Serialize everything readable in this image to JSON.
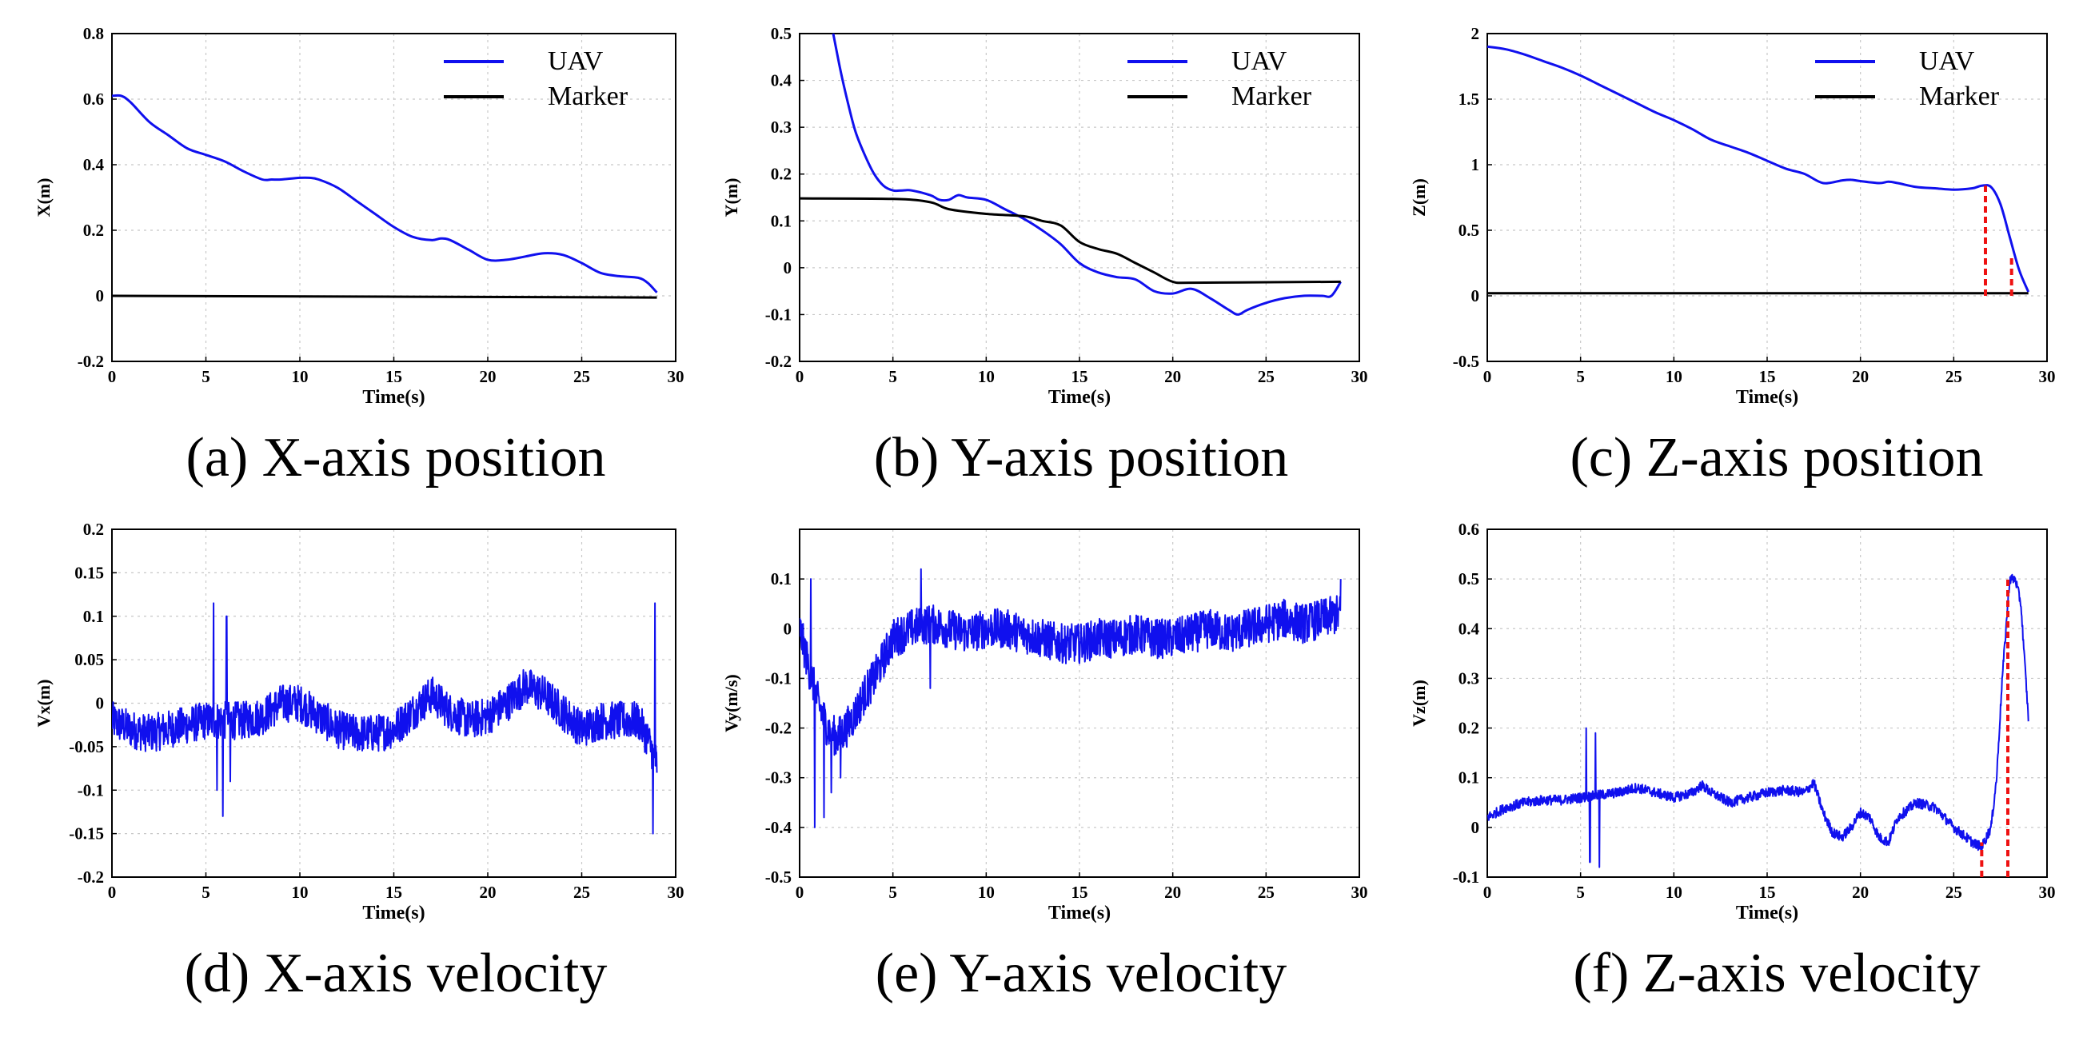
{
  "colors": {
    "uav": "#1010ee",
    "marker": "#000000",
    "annotation": "#ee1111"
  },
  "chart_data": [
    {
      "id": "a",
      "type": "line",
      "caption": "(a) X-axis position",
      "xlabel": "Time(s)",
      "ylabel": "X(m)",
      "xlim": [
        0,
        30
      ],
      "ylim": [
        -0.2,
        0.8
      ],
      "xticks": [
        0,
        5,
        10,
        15,
        20,
        25,
        30
      ],
      "yticks": [
        -0.2,
        0,
        0.2,
        0.4,
        0.6,
        0.8
      ],
      "legend": [
        "UAV",
        "Marker"
      ],
      "legend_position": "top-right",
      "series": [
        {
          "name": "UAV",
          "color": "#1010ee",
          "x": [
            0,
            0.5,
            1,
            2,
            3,
            4,
            5,
            6,
            7,
            8,
            8.5,
            9,
            10,
            10.5,
            11,
            12,
            13,
            14,
            15,
            16,
            17,
            17.5,
            18,
            19,
            20,
            21,
            22,
            23,
            24,
            25,
            26,
            27,
            28,
            28.5,
            29
          ],
          "y": [
            0.61,
            0.61,
            0.59,
            0.53,
            0.49,
            0.45,
            0.43,
            0.41,
            0.38,
            0.355,
            0.355,
            0.355,
            0.36,
            0.36,
            0.355,
            0.33,
            0.29,
            0.25,
            0.21,
            0.18,
            0.17,
            0.175,
            0.17,
            0.14,
            0.11,
            0.11,
            0.12,
            0.13,
            0.125,
            0.1,
            0.07,
            0.06,
            0.055,
            0.04,
            0.01
          ]
        },
        {
          "name": "Marker",
          "color": "#000000",
          "x": [
            0,
            29
          ],
          "y": [
            0.0,
            -0.005
          ]
        }
      ]
    },
    {
      "id": "b",
      "type": "line",
      "caption": "(b) Y-axis position",
      "xlabel": "Time(s)",
      "ylabel": "Y(m)",
      "xlim": [
        0,
        30
      ],
      "ylim": [
        -0.2,
        0.5
      ],
      "xticks": [
        0,
        5,
        10,
        15,
        20,
        25,
        30
      ],
      "yticks": [
        -0.2,
        -0.1,
        0,
        0.1,
        0.2,
        0.3,
        0.4,
        0.5
      ],
      "legend": [
        "UAV",
        "Marker"
      ],
      "legend_position": "top-right",
      "series": [
        {
          "name": "UAV",
          "color": "#1010ee",
          "x": [
            1.8,
            2.2,
            2.6,
            3,
            3.5,
            4,
            4.5,
            5,
            5.5,
            6,
            7,
            7.5,
            8,
            8.5,
            9,
            10,
            11,
            12,
            13,
            14,
            15,
            16,
            17,
            18,
            19,
            20,
            21,
            22,
            23,
            23.5,
            24,
            25,
            26,
            27,
            28,
            28.5,
            29
          ],
          "y": [
            0.5,
            0.42,
            0.35,
            0.29,
            0.24,
            0.2,
            0.175,
            0.165,
            0.165,
            0.165,
            0.155,
            0.145,
            0.145,
            0.155,
            0.15,
            0.145,
            0.125,
            0.105,
            0.08,
            0.05,
            0.01,
            -0.01,
            -0.02,
            -0.025,
            -0.05,
            -0.055,
            -0.045,
            -0.065,
            -0.09,
            -0.1,
            -0.09,
            -0.075,
            -0.065,
            -0.06,
            -0.06,
            -0.06,
            -0.03
          ]
        },
        {
          "name": "Marker",
          "color": "#000000",
          "x": [
            0,
            5,
            7,
            8,
            10,
            12,
            13,
            14,
            15,
            16,
            17,
            18,
            19,
            20,
            21,
            25,
            29
          ],
          "y": [
            0.148,
            0.147,
            0.14,
            0.125,
            0.115,
            0.11,
            0.1,
            0.09,
            0.055,
            0.04,
            0.03,
            0.01,
            -0.01,
            -0.03,
            -0.032,
            -0.031,
            -0.03
          ]
        }
      ]
    },
    {
      "id": "c",
      "type": "line",
      "caption": "(c) Z-axis position",
      "xlabel": "Time(s)",
      "ylabel": "Z(m)",
      "xlim": [
        0,
        30
      ],
      "ylim": [
        -0.5,
        2
      ],
      "xticks": [
        0,
        5,
        10,
        15,
        20,
        25,
        30
      ],
      "yticks": [
        -0.5,
        0,
        0.5,
        1,
        1.5,
        2
      ],
      "legend": [
        "UAV",
        "Marker"
      ],
      "legend_position": "top-right",
      "series": [
        {
          "name": "UAV",
          "color": "#1010ee",
          "x": [
            0,
            1,
            2,
            3,
            4,
            5,
            6,
            7,
            8,
            9,
            10,
            11,
            12,
            13,
            14,
            15,
            16,
            17,
            18,
            19,
            19.5,
            20,
            21,
            21.5,
            22,
            23,
            24,
            25,
            26,
            26.5,
            27,
            27.5,
            28,
            28.5,
            29
          ],
          "y": [
            1.9,
            1.88,
            1.84,
            1.79,
            1.74,
            1.68,
            1.61,
            1.54,
            1.47,
            1.4,
            1.34,
            1.27,
            1.19,
            1.14,
            1.09,
            1.03,
            0.97,
            0.93,
            0.86,
            0.88,
            0.885,
            0.875,
            0.86,
            0.87,
            0.86,
            0.83,
            0.82,
            0.81,
            0.82,
            0.84,
            0.83,
            0.7,
            0.45,
            0.2,
            0.03
          ]
        },
        {
          "name": "Marker",
          "color": "#000000",
          "x": [
            0,
            29
          ],
          "y": [
            0.02,
            0.02
          ]
        }
      ],
      "annotations": [
        {
          "type": "vline-dashed",
          "x": 26.7,
          "y_from": 0.0,
          "y_to": 0.84,
          "color": "#ee1111"
        },
        {
          "type": "vline-dashed",
          "x": 28.1,
          "y_from": 0.0,
          "y_to": 0.3,
          "color": "#ee1111"
        }
      ]
    },
    {
      "id": "d",
      "type": "line",
      "caption": "(d) X-axis velocity",
      "xlabel": "Time(s)",
      "ylabel": "Vx(m)",
      "xlim": [
        0,
        30
      ],
      "ylim": [
        -0.2,
        0.2
      ],
      "xticks": [
        0,
        5,
        10,
        15,
        20,
        25,
        30
      ],
      "yticks": [
        -0.2,
        -0.15,
        -0.1,
        -0.05,
        0,
        0.05,
        0.1,
        0.15,
        0.2
      ],
      "series": [
        {
          "name": "Vx",
          "color": "#1010ee",
          "noisy": true,
          "noise_amplitude": 0.022,
          "x": [
            0,
            1,
            2,
            3,
            4,
            5,
            6,
            7,
            8,
            9,
            10,
            11,
            12,
            13,
            14,
            15,
            16,
            17,
            18,
            19,
            20,
            21,
            22,
            23,
            24,
            25,
            26,
            27,
            28,
            28.5,
            29
          ],
          "y": [
            -0.02,
            -0.03,
            -0.035,
            -0.03,
            -0.025,
            -0.02,
            -0.02,
            -0.02,
            -0.015,
            0.0,
            0.0,
            -0.015,
            -0.03,
            -0.035,
            -0.035,
            -0.03,
            -0.01,
            0.01,
            -0.01,
            -0.02,
            -0.015,
            0.0,
            0.02,
            0.01,
            -0.01,
            -0.03,
            -0.02,
            -0.02,
            -0.02,
            -0.04,
            -0.07
          ],
          "spikes": [
            [
              5.4,
              0.115
            ],
            [
              5.6,
              -0.1
            ],
            [
              5.9,
              -0.13
            ],
            [
              6.1,
              0.1
            ],
            [
              6.3,
              -0.09
            ],
            [
              28.8,
              -0.15
            ],
            [
              28.9,
              0.115
            ],
            [
              29.0,
              -0.08
            ]
          ]
        }
      ]
    },
    {
      "id": "e",
      "type": "line",
      "caption": "(e) Y-axis velocity",
      "xlabel": "Time(s)",
      "ylabel": "Vy(m/s)",
      "xlim": [
        0,
        30
      ],
      "ylim": [
        -0.5,
        0.2
      ],
      "xticks": [
        0,
        5,
        10,
        15,
        20,
        25,
        30
      ],
      "yticks": [
        -0.5,
        -0.4,
        -0.3,
        -0.2,
        -0.1,
        0,
        0.1
      ],
      "series": [
        {
          "name": "Vy",
          "color": "#1010ee",
          "noisy": true,
          "noise_amplitude": 0.04,
          "x": [
            0,
            0.5,
            1,
            1.5,
            2,
            2.5,
            3,
            3.5,
            4,
            4.5,
            5,
            6,
            7,
            8,
            9,
            10,
            11,
            12,
            13,
            14,
            15,
            16,
            17,
            18,
            19,
            20,
            21,
            22,
            23,
            24,
            25,
            26,
            27,
            28,
            29
          ],
          "y": [
            0.0,
            -0.08,
            -0.15,
            -0.2,
            -0.22,
            -0.2,
            -0.17,
            -0.13,
            -0.1,
            -0.06,
            -0.02,
            0.0,
            0.01,
            0.0,
            -0.01,
            0.0,
            0.0,
            -0.01,
            -0.02,
            -0.03,
            -0.03,
            -0.02,
            -0.02,
            -0.01,
            -0.02,
            -0.02,
            -0.01,
            0.0,
            -0.01,
            0.0,
            0.01,
            0.02,
            0.01,
            0.02,
            0.03
          ],
          "spikes": [
            [
              0.6,
              0.1
            ],
            [
              0.8,
              -0.4
            ],
            [
              1.3,
              -0.38
            ],
            [
              1.7,
              -0.33
            ],
            [
              2.2,
              -0.3
            ],
            [
              6.5,
              0.12
            ],
            [
              7.0,
              -0.12
            ],
            [
              29.0,
              0.1
            ]
          ]
        }
      ]
    },
    {
      "id": "f",
      "type": "line",
      "caption": "(f) Z-axis velocity",
      "xlabel": "Time(s)",
      "ylabel": "Vz(m)",
      "xlim": [
        0,
        30
      ],
      "ylim": [
        -0.1,
        0.6
      ],
      "xticks": [
        0,
        5,
        10,
        15,
        20,
        25,
        30
      ],
      "yticks": [
        -0.1,
        0,
        0.1,
        0.2,
        0.3,
        0.4,
        0.5,
        0.6
      ],
      "series": [
        {
          "name": "Vz",
          "color": "#1010ee",
          "noisy": true,
          "noise_amplitude": 0.01,
          "x": [
            0,
            1,
            2,
            3,
            4,
            5,
            6,
            7,
            8,
            9,
            10,
            11,
            11.5,
            12,
            13,
            14,
            15,
            16,
            17,
            17.5,
            18,
            18.5,
            19,
            19.5,
            20,
            20.5,
            21,
            21.5,
            22,
            23,
            24,
            25,
            26,
            26.5,
            27,
            27.3,
            27.6,
            28,
            28.3,
            28.6,
            29
          ],
          "y": [
            0.02,
            0.04,
            0.05,
            0.055,
            0.055,
            0.06,
            0.065,
            0.07,
            0.08,
            0.07,
            0.06,
            0.07,
            0.085,
            0.07,
            0.05,
            0.06,
            0.07,
            0.075,
            0.07,
            0.09,
            0.03,
            -0.01,
            -0.02,
            0.0,
            0.03,
            0.02,
            -0.02,
            -0.03,
            0.02,
            0.05,
            0.04,
            0.0,
            -0.03,
            -0.04,
            0.0,
            0.1,
            0.3,
            0.5,
            0.5,
            0.45,
            0.22
          ],
          "spikes": [
            [
              5.3,
              0.2
            ],
            [
              5.5,
              -0.07
            ],
            [
              5.8,
              0.19
            ],
            [
              6.0,
              -0.08
            ]
          ]
        }
      ],
      "annotations": [
        {
          "type": "vline-dashed",
          "x": 26.5,
          "y_from": -0.1,
          "y_to": -0.03,
          "color": "#ee1111"
        },
        {
          "type": "vline-dashed",
          "x": 27.9,
          "y_from": -0.1,
          "y_to": 0.5,
          "color": "#ee1111"
        }
      ]
    }
  ]
}
